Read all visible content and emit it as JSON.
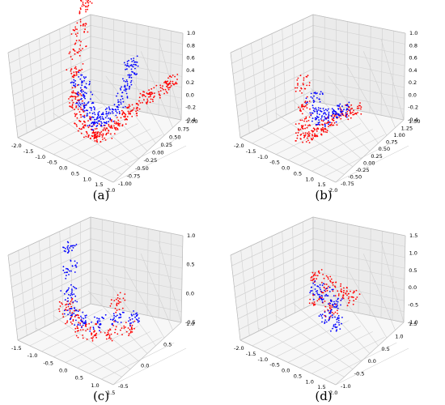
{
  "colors": {
    "series_a": "#ff0000",
    "series_b": "#0000ff",
    "grid": "#d0d0d0",
    "pane": "#f2f2f2"
  },
  "chart_data": [
    {
      "type": "scatter",
      "caption": "(a)",
      "grid": true,
      "x_ticks": [
        "-2.0",
        "-1.5",
        "-1.0",
        "-0.5",
        "0.0",
        "0.5",
        "1.0",
        "1.5",
        "2.0"
      ],
      "y_ticks": [
        "1.00",
        "0.75",
        "0.50",
        "0.25",
        "0.00",
        "-0.25",
        "-0.50",
        "-0.75",
        "-1.00"
      ],
      "z_ticks": [
        "1.0",
        "0.8",
        "0.6",
        "0.4",
        "0.2",
        "0.0",
        "-0.2",
        "-0.4"
      ],
      "xlim": [
        -2.0,
        2.0
      ],
      "ylim": [
        -1.0,
        1.0
      ],
      "zlim": [
        -0.4,
        1.0
      ],
      "series": [
        {
          "color": "#ff0000",
          "points": [
            [
              -2.0,
              1.0,
              0.95
            ],
            [
              -1.9,
              0.9,
              0.8
            ],
            [
              -1.7,
              0.6,
              0.6
            ],
            [
              -1.5,
              0.4,
              0.4
            ],
            [
              -1.3,
              0.2,
              0.2
            ],
            [
              -1.0,
              0.0,
              0.0
            ],
            [
              -0.8,
              -0.1,
              -0.1
            ],
            [
              -0.5,
              -0.2,
              -0.25
            ],
            [
              -0.3,
              -0.2,
              -0.3
            ],
            [
              0.0,
              -0.2,
              -0.35
            ],
            [
              0.2,
              -0.2,
              -0.35
            ],
            [
              0.4,
              -0.2,
              -0.3
            ],
            [
              0.6,
              -0.1,
              -0.25
            ],
            [
              0.8,
              0.0,
              -0.15
            ],
            [
              1.0,
              0.1,
              -0.05
            ],
            [
              1.2,
              0.2,
              0.05
            ],
            [
              1.4,
              0.4,
              0.15
            ],
            [
              1.6,
              0.5,
              0.2
            ],
            [
              1.8,
              0.7,
              0.25
            ],
            [
              1.9,
              0.8,
              0.3
            ]
          ]
        },
        {
          "color": "#0000ff",
          "points": [
            [
              -0.9,
              0.0,
              0.2
            ],
            [
              -0.7,
              0.0,
              0.1
            ],
            [
              -0.5,
              -0.1,
              0.0
            ],
            [
              -0.3,
              -0.1,
              -0.1
            ],
            [
              -0.1,
              -0.1,
              -0.2
            ],
            [
              0.1,
              -0.1,
              -0.2
            ],
            [
              0.3,
              -0.1,
              -0.15
            ],
            [
              0.5,
              0.0,
              -0.05
            ],
            [
              0.7,
              0.1,
              0.1
            ],
            [
              0.8,
              0.2,
              0.3
            ],
            [
              0.9,
              0.3,
              0.5
            ],
            [
              0.9,
              0.3,
              0.7
            ]
          ]
        }
      ]
    },
    {
      "type": "scatter",
      "caption": "(b)",
      "grid": true,
      "x_ticks": [
        "-2.0",
        "-1.5",
        "-1.0",
        "-0.5",
        "0.0",
        "0.5",
        "1.0",
        "1.5",
        "2.0"
      ],
      "y_ticks": [
        "1.50",
        "1.25",
        "1.00",
        "0.75",
        "0.50",
        "0.25",
        "0.00",
        "-0.25",
        "-0.50",
        "-0.75"
      ],
      "z_ticks": [
        "1.0",
        "0.8",
        "0.6",
        "0.4",
        "0.2",
        "0.0",
        "-0.2",
        "-0.4"
      ],
      "xlim": [
        -2.0,
        2.0
      ],
      "ylim": [
        -0.75,
        1.5
      ],
      "zlim": [
        -0.4,
        1.0
      ],
      "series": [
        {
          "color": "#ff0000",
          "points": [
            [
              -0.6,
              0.2,
              0.3
            ],
            [
              -0.4,
              0.1,
              0.0
            ],
            [
              -0.3,
              0.0,
              -0.2
            ],
            [
              -0.2,
              -0.1,
              -0.3
            ],
            [
              0.0,
              0.0,
              -0.35
            ],
            [
              0.2,
              0.1,
              -0.3
            ],
            [
              0.4,
              0.2,
              -0.2
            ],
            [
              0.6,
              0.3,
              -0.1
            ],
            [
              0.9,
              0.4,
              0.0
            ],
            [
              1.2,
              0.5,
              0.05
            ]
          ]
        },
        {
          "color": "#0000ff",
          "points": [
            [
              -0.2,
              0.3,
              0.1
            ],
            [
              0.0,
              0.2,
              -0.05
            ],
            [
              0.2,
              0.2,
              -0.1
            ],
            [
              0.4,
              0.3,
              -0.1
            ],
            [
              0.6,
              0.4,
              -0.05
            ],
            [
              0.8,
              0.5,
              0.0
            ]
          ]
        }
      ]
    },
    {
      "type": "scatter",
      "caption": "(c)",
      "grid": true,
      "x_ticks": [
        "-1.5",
        "-1.0",
        "-0.5",
        "0.0",
        "0.5",
        "1.0",
        "1.5"
      ],
      "y_ticks": [
        "1.0",
        "0.5",
        "0.0",
        "-0.5"
      ],
      "z_ticks": [
        "1.0",
        "0.5",
        "0.0",
        "-0.5"
      ],
      "xlim": [
        -1.5,
        1.5
      ],
      "ylim": [
        -0.5,
        1.0
      ],
      "zlim": [
        -0.5,
        1.0
      ],
      "series": [
        {
          "color": "#ff0000",
          "points": [
            [
              -1.0,
              0.2,
              -0.3
            ],
            [
              -0.6,
              0.1,
              -0.3
            ],
            [
              -0.2,
              0.0,
              -0.35
            ],
            [
              0.2,
              0.0,
              -0.3
            ],
            [
              0.6,
              0.1,
              -0.25
            ],
            [
              1.0,
              0.2,
              -0.15
            ],
            [
              0.4,
              0.4,
              0.0
            ]
          ]
        },
        {
          "color": "#0000ff",
          "points": [
            [
              -0.6,
              0.0,
              1.0
            ],
            [
              -0.6,
              0.0,
              0.6
            ],
            [
              -0.6,
              0.0,
              0.2
            ],
            [
              -0.5,
              0.0,
              -0.1
            ],
            [
              -0.2,
              0.0,
              -0.2
            ],
            [
              0.2,
              0.1,
              -0.2
            ],
            [
              0.6,
              0.2,
              -0.1
            ],
            [
              1.0,
              0.3,
              -0.05
            ]
          ]
        }
      ]
    },
    {
      "type": "scatter",
      "caption": "(d)",
      "grid": true,
      "x_ticks": [
        "-2.0",
        "-1.5",
        "-1.0",
        "-0.5",
        "0.0",
        "0.5",
        "1.0",
        "1.5",
        "2.0"
      ],
      "y_ticks": [
        "1.5",
        "1.0",
        "0.5",
        "0.0",
        "-0.5",
        "-1.0"
      ],
      "z_ticks": [
        "1.5",
        "1.0",
        "0.5",
        "0.0",
        "-0.5",
        "-1.0"
      ],
      "xlim": [
        -2.0,
        2.0
      ],
      "ylim": [
        -1.0,
        1.5
      ],
      "zlim": [
        -1.0,
        1.5
      ],
      "series": [
        {
          "color": "#ff0000",
          "points": [
            [
              -0.5,
              0.5,
              0.3
            ],
            [
              0.0,
              0.5,
              0.2
            ],
            [
              0.5,
              0.5,
              0.1
            ],
            [
              -0.3,
              0.3,
              -0.2
            ],
            [
              0.3,
              0.3,
              -0.3
            ],
            [
              0.8,
              0.6,
              0.0
            ]
          ]
        },
        {
          "color": "#0000ff",
          "points": [
            [
              -0.4,
              0.4,
              0.0
            ],
            [
              0.0,
              0.4,
              -0.1
            ],
            [
              0.4,
              0.4,
              -0.2
            ],
            [
              0.2,
              0.2,
              -0.5
            ],
            [
              0.6,
              0.3,
              -0.6
            ]
          ]
        }
      ]
    }
  ]
}
